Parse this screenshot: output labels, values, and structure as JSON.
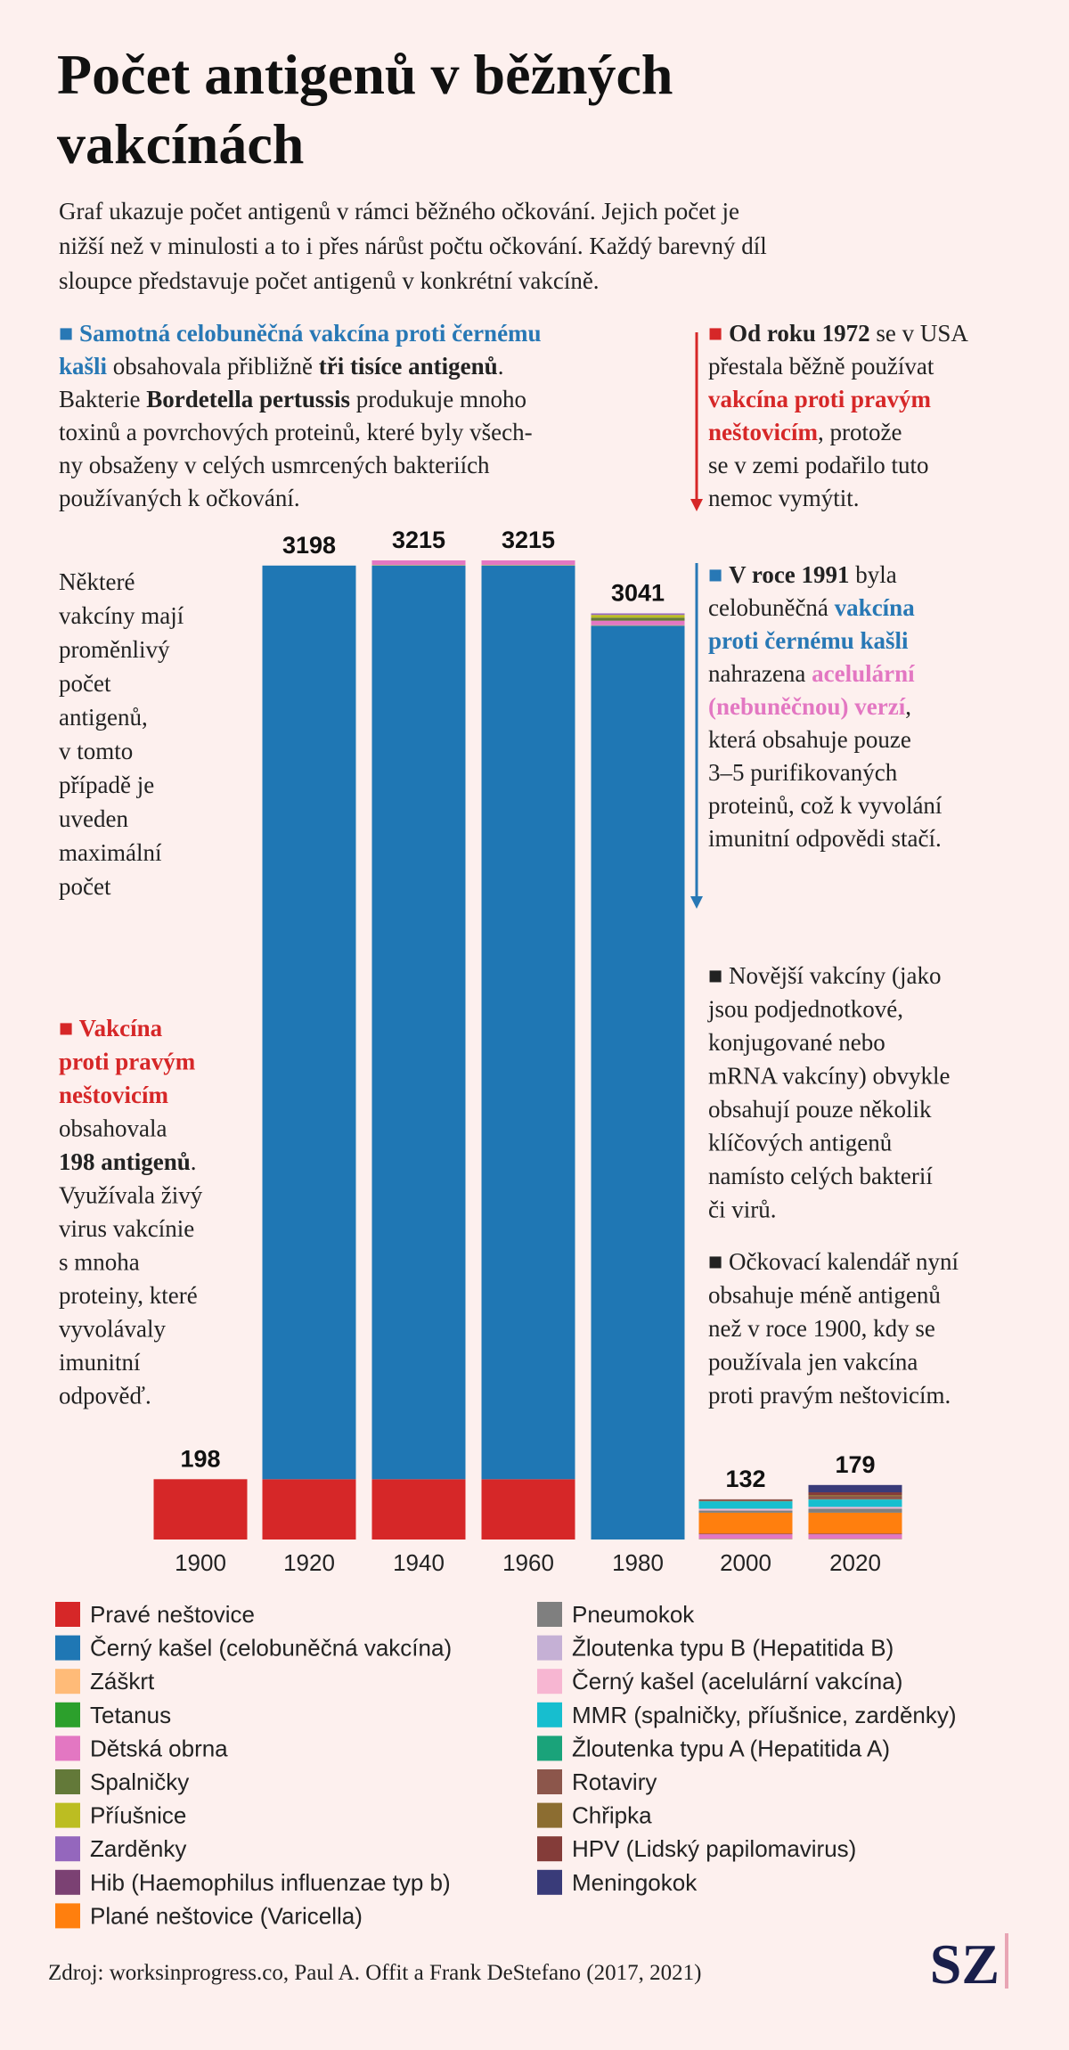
{
  "chart_data": {
    "type": "stacked-bar",
    "title": [
      "Počet antigenů v běžných",
      "vakcínách"
    ],
    "subtitle": [
      "Graf ukazuje počet antigenů v rámci běžného očkování. Jejich počet je",
      "nižší než v minulosti a to i přes nárůst počtu očkování. Každý barevný díl",
      "sloupce představuje počet antigenů v konkrétní vakcíně."
    ],
    "categories": [
      "1900",
      "1920",
      "1940",
      "1960",
      "1980",
      "2000",
      "2020"
    ],
    "totals": [
      198,
      3198,
      3215,
      3215,
      3041,
      132,
      179
    ],
    "series": [
      {
        "name": "Pravé neštovice",
        "color": "#d62728",
        "values": [
          198,
          198,
          198,
          198,
          0,
          0,
          0
        ]
      },
      {
        "name": "Černý kašel (celobuněčná vakcína)",
        "color": "#1f77b4",
        "values": [
          0,
          3000,
          3000,
          3000,
          3000,
          0,
          0
        ]
      },
      {
        "name": "Záškrt",
        "color": "#ffbb78",
        "values": [
          0,
          0,
          1,
          1,
          1,
          1,
          1
        ]
      },
      {
        "name": "Tetanus",
        "color": "#2ca02c",
        "values": [
          0,
          0,
          1,
          1,
          1,
          1,
          1
        ]
      },
      {
        "name": "Dětská obrna",
        "color": "#e377c2",
        "values": [
          0,
          0,
          15,
          15,
          15,
          15,
          15
        ]
      },
      {
        "name": "Spalničky",
        "color": "#637939",
        "values": [
          0,
          0,
          0,
          0,
          10,
          0,
          0
        ]
      },
      {
        "name": "Příušnice",
        "color": "#bcbd22",
        "values": [
          0,
          0,
          0,
          0,
          9,
          0,
          0
        ]
      },
      {
        "name": "Zarděnky",
        "color": "#9467bd",
        "values": [
          0,
          0,
          0,
          0,
          5,
          0,
          0
        ]
      },
      {
        "name": "Hib (Haemophilus influenzae typ b)",
        "color": "#7b4173",
        "values": [
          0,
          0,
          0,
          0,
          0,
          2,
          2
        ]
      },
      {
        "name": "Plané neštovice (Varicella)",
        "color": "#ff7f0e",
        "values": [
          0,
          0,
          0,
          0,
          0,
          69,
          69
        ]
      },
      {
        "name": "Pneumokok",
        "color": "#7f7f7f",
        "values": [
          0,
          0,
          0,
          0,
          0,
          7,
          13
        ]
      },
      {
        "name": "Žloutenka typu B (Hepatitida B)",
        "color": "#c5b0d5",
        "values": [
          0,
          0,
          0,
          0,
          0,
          1,
          1
        ]
      },
      {
        "name": "Černý kašel (acelulární vakcína)",
        "color": "#f7b6d2",
        "values": [
          0,
          0,
          0,
          0,
          0,
          5,
          5
        ]
      },
      {
        "name": "MMR (spalničky, příušnice, zarděnky)",
        "color": "#17becf",
        "values": [
          0,
          0,
          0,
          0,
          0,
          24,
          24
        ]
      },
      {
        "name": "Žloutenka typu A (Hepatitida A)",
        "color": "#1aa37a",
        "values": [
          0,
          0,
          0,
          0,
          0,
          1,
          1
        ]
      },
      {
        "name": "Rotaviry",
        "color": "#8c564b",
        "values": [
          0,
          0,
          0,
          0,
          0,
          6,
          10
        ]
      },
      {
        "name": "Chřipka",
        "color": "#8c6d31",
        "values": [
          0,
          0,
          0,
          0,
          0,
          0,
          4
        ]
      },
      {
        "name": "HPV (Lidský papilomavirus)",
        "color": "#843c39",
        "values": [
          0,
          0,
          0,
          0,
          0,
          0,
          9
        ]
      },
      {
        "name": "Meningokok",
        "color": "#393b79",
        "values": [
          0,
          0,
          0,
          0,
          0,
          0,
          24
        ]
      }
    ],
    "annotations": [
      {
        "lines": [
          [
            {
              "text": "■ Samotná celobuněčná vakcína proti černému",
              "bold": true,
              "color": "#2878b5"
            }
          ],
          [
            {
              "text": "kašli",
              "bold": true,
              "color": "#2878b5"
            },
            {
              "text": " obsahovala přibližně "
            },
            {
              "text": "tři tisíce antigenů",
              "bold": true
            },
            {
              "text": "."
            }
          ],
          [
            {
              "text": "Bakterie "
            },
            {
              "text": "Bordetella pertussis",
              "bold": true
            },
            {
              "text": " produkuje mnoho"
            }
          ],
          [
            {
              "text": "toxinů a povrchových proteinů, které byly všech-"
            }
          ],
          [
            {
              "text": "ny obsaženy v celých usmrcených bakteriích"
            }
          ],
          [
            {
              "text": "používaných k očkování."
            }
          ]
        ]
      },
      {
        "lines": [
          [
            {
              "text": "■ ",
              "color": "#d62728"
            },
            {
              "text": "Od roku 1972",
              "bold": true
            },
            {
              "text": " se v USA"
            }
          ],
          [
            {
              "text": "přestala běžně používat"
            }
          ],
          [
            {
              "text": "vakcína proti pravým",
              "bold": true,
              "color": "#d62728"
            }
          ],
          [
            {
              "text": "neštovicím",
              "bold": true,
              "color": "#d62728"
            },
            {
              "text": ", protože"
            }
          ],
          [
            {
              "text": "se v zemi podařilo tuto"
            }
          ],
          [
            {
              "text": "nemoc vymýtit."
            }
          ]
        ]
      },
      {
        "lines": [
          [
            {
              "text": "Některé"
            }
          ],
          [
            {
              "text": "vakcíny mají"
            }
          ],
          [
            {
              "text": "proměnlivý"
            }
          ],
          [
            {
              "text": "počet"
            }
          ],
          [
            {
              "text": "antigenů,"
            }
          ],
          [
            {
              "text": "v tomto"
            }
          ],
          [
            {
              "text": "případě je"
            }
          ],
          [
            {
              "text": "uveden"
            }
          ],
          [
            {
              "text": "maximální"
            }
          ],
          [
            {
              "text": "počet"
            }
          ]
        ]
      },
      {
        "lines": [
          [
            {
              "text": "■ ",
              "color": "#2878b5"
            },
            {
              "text": "V roce 1991",
              "bold": true
            },
            {
              "text": " byla"
            }
          ],
          [
            {
              "text": "celobuněčná "
            },
            {
              "text": "vakcína",
              "bold": true,
              "color": "#2878b5"
            }
          ],
          [
            {
              "text": "proti černému kašli",
              "bold": true,
              "color": "#2878b5"
            }
          ],
          [
            {
              "text": "nahrazena "
            },
            {
              "text": "acelulární",
              "bold": true,
              "color": "#e377c2"
            }
          ],
          [
            {
              "text": "(nebuněčnou) verzí",
              "bold": true,
              "color": "#e377c2"
            },
            {
              "text": ","
            }
          ],
          [
            {
              "text": "která obsahuje pouze"
            }
          ],
          [
            {
              "text": "3–5 purifikovaných"
            }
          ],
          [
            {
              "text": "proteinů, což k vyvolání"
            }
          ],
          [
            {
              "text": "imunitní odpovědi stačí."
            }
          ]
        ]
      },
      {
        "lines": [
          [
            {
              "text": "■ Vakcína",
              "bold": true,
              "color": "#d62728"
            }
          ],
          [
            {
              "text": "proti pravým",
              "bold": true,
              "color": "#d62728"
            }
          ],
          [
            {
              "text": "neštovicím",
              "bold": true,
              "color": "#d62728"
            }
          ],
          [
            {
              "text": "obsahovala"
            }
          ],
          [
            {
              "text": "198 antigenů",
              "bold": true
            },
            {
              "text": "."
            }
          ],
          [
            {
              "text": "Využívala živý"
            }
          ],
          [
            {
              "text": "virus vakcínie"
            }
          ],
          [
            {
              "text": "s mnoha"
            }
          ],
          [
            {
              "text": "proteiny, které"
            }
          ],
          [
            {
              "text": "vyvolávaly"
            }
          ],
          [
            {
              "text": "imunitní"
            }
          ],
          [
            {
              "text": "odpověď."
            }
          ]
        ]
      },
      {
        "lines": [
          [
            {
              "text": "■ Novější vakcíny (jako"
            }
          ],
          [
            {
              "text": "jsou podjednotkové,"
            }
          ],
          [
            {
              "text": "konjugované nebo"
            }
          ],
          [
            {
              "text": "mRNA vakcíny) obvykle"
            }
          ],
          [
            {
              "text": "obsahují pouze několik"
            }
          ],
          [
            {
              "text": "klíčových antigenů"
            }
          ],
          [
            {
              "text": "namísto celých bakterií"
            }
          ],
          [
            {
              "text": "či virů."
            }
          ]
        ]
      },
      {
        "lines": [
          [
            {
              "text": "■ Očkovací kalendář nyní"
            }
          ],
          [
            {
              "text": "obsahuje méně antigenů"
            }
          ],
          [
            {
              "text": "než v roce 1900, kdy se"
            }
          ],
          [
            {
              "text": "používala jen vakcína"
            }
          ],
          [
            {
              "text": "proti pravým neštovicím."
            }
          ]
        ]
      }
    ],
    "source": "Zdroj: worksinprogress.co, Paul A. Offit a Frank DeStefano (2017, 2021)",
    "logo": "SZ"
  }
}
